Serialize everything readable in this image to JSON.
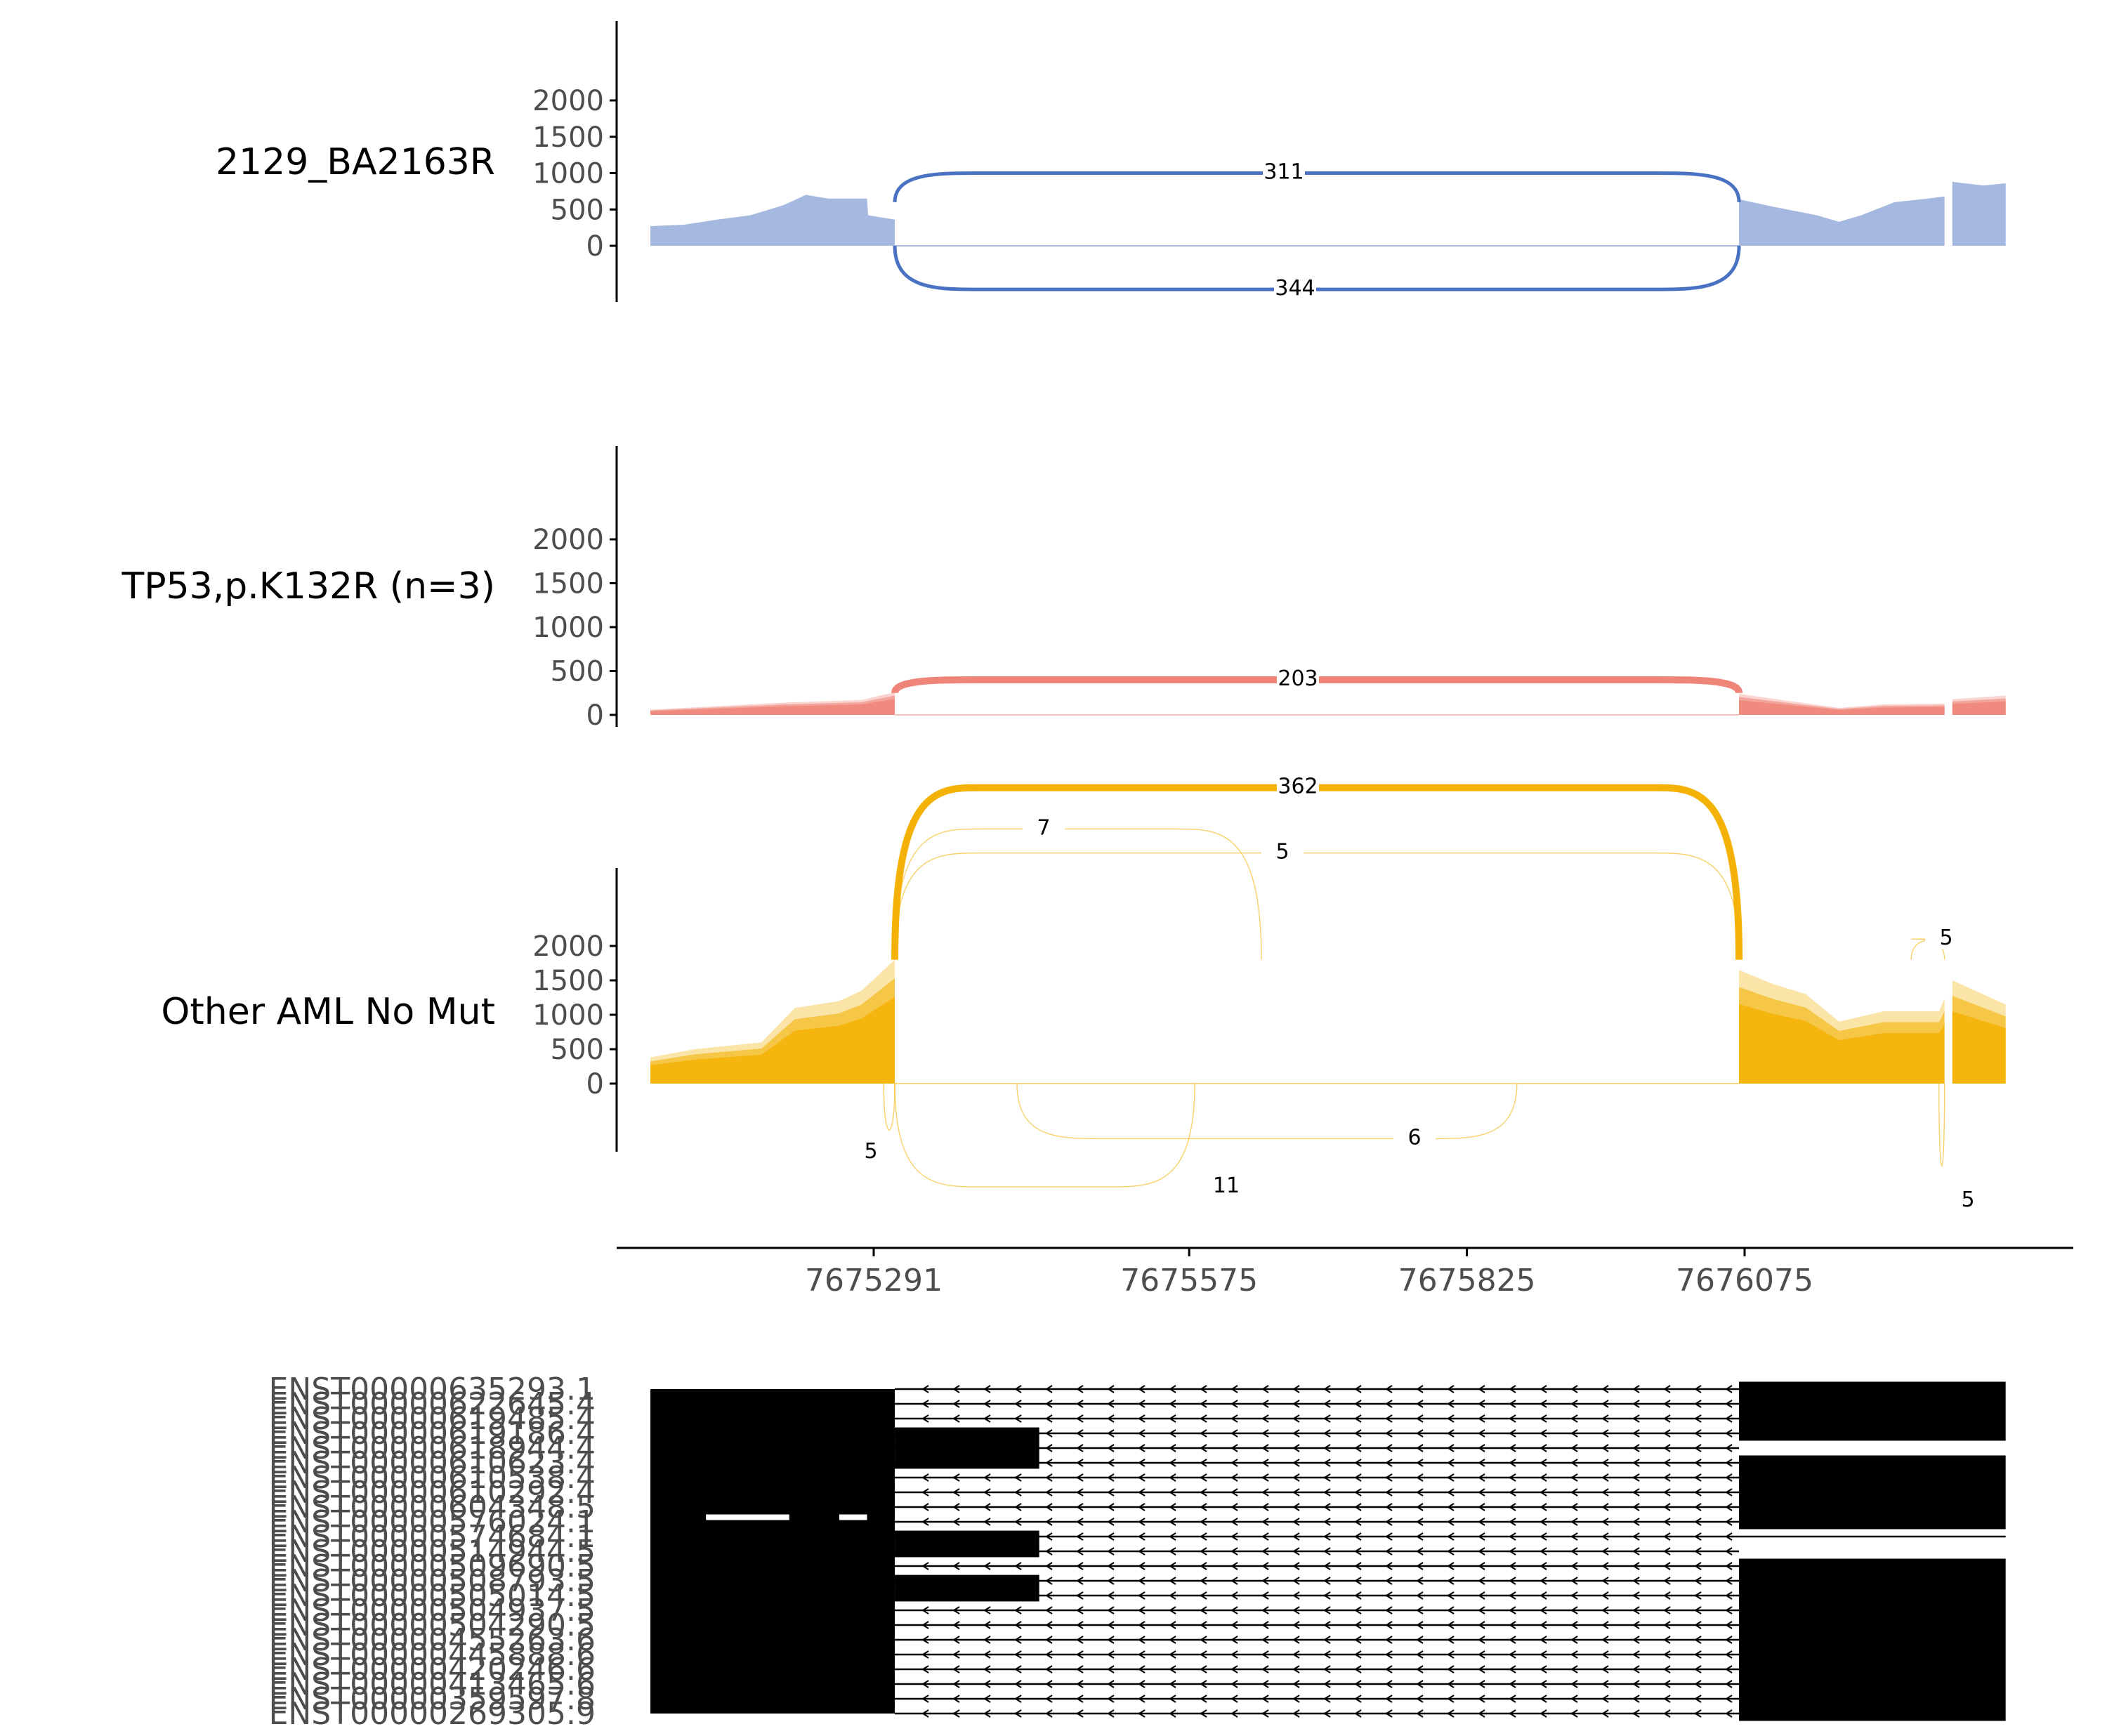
{
  "chart_data": {
    "type": "area",
    "title": "",
    "grid": false,
    "colors": {
      "sample": "#4a72c2",
      "tp53": "#ef8579",
      "other": "#f4b206",
      "gene": "#000000"
    },
    "panels": [
      {
        "id": "sample",
        "label": "2129_BA2163R",
        "y_ticks": [
          "2000",
          "1500",
          "1000",
          "500",
          "0"
        ],
        "ylim": [
          -600,
          3000
        ],
        "coverage": [
          [
            7675090,
            270
          ],
          [
            7675120,
            290
          ],
          [
            7675150,
            360
          ],
          [
            7675180,
            420
          ],
          [
            7675210,
            560
          ],
          [
            7675230,
            700
          ],
          [
            7675250,
            650
          ],
          [
            7675285,
            650
          ],
          [
            7675286,
            420
          ],
          [
            7675310,
            360
          ],
          [
            7676070,
            640
          ],
          [
            7676100,
            540
          ],
          [
            7676140,
            420
          ],
          [
            7676160,
            330
          ],
          [
            7676180,
            420
          ],
          [
            7676210,
            600
          ],
          [
            7676240,
            650
          ],
          [
            7676255,
            680
          ],
          [
            7676262,
            880
          ],
          [
            7676290,
            830
          ],
          [
            7676310,
            860
          ]
        ],
        "junctions": [
          {
            "value": 311,
            "side": "above",
            "peak": 1000
          },
          {
            "value": 344,
            "side": "below",
            "peak": -600
          }
        ]
      },
      {
        "id": "tp53",
        "label": "TP53,p.K132R (n=3)",
        "y_ticks": [
          "2000",
          "1500",
          "1000",
          "500",
          "0"
        ],
        "ylim": [
          -150,
          3000
        ],
        "coverage": [
          [
            7675090,
            60
          ],
          [
            7675150,
            100
          ],
          [
            7675210,
            140
          ],
          [
            7675280,
            170
          ],
          [
            7675310,
            260
          ],
          [
            7676070,
            240
          ],
          [
            7676120,
            150
          ],
          [
            7676160,
            80
          ],
          [
            7676200,
            120
          ],
          [
            7676255,
            130
          ],
          [
            7676262,
            180
          ],
          [
            7676310,
            220
          ]
        ],
        "junctions": [
          {
            "value": 203,
            "side": "above",
            "peak": 400
          }
        ]
      },
      {
        "id": "other",
        "label": "Other AML No Mut",
        "y_ticks": [
          "2000",
          "1500",
          "1000",
          "500",
          "0"
        ],
        "ylim": [
          -1900,
          4300
        ],
        "coverage": [
          [
            7675090,
            380
          ],
          [
            7675130,
            500
          ],
          [
            7675190,
            600
          ],
          [
            7675220,
            1100
          ],
          [
            7675260,
            1200
          ],
          [
            7675280,
            1350
          ],
          [
            7675310,
            1800
          ],
          [
            7676070,
            1650
          ],
          [
            7676100,
            1450
          ],
          [
            7676130,
            1300
          ],
          [
            7676160,
            900
          ],
          [
            7676200,
            1050
          ],
          [
            7676250,
            1050
          ],
          [
            7676262,
            1500
          ],
          [
            7676310,
            1150
          ]
        ],
        "junctions": [
          {
            "value": 362,
            "side": "above",
            "peak": 4300
          },
          {
            "value": 7,
            "side": "above",
            "peak": 3700
          },
          {
            "value": 5,
            "side": "above",
            "peak": 3350
          },
          {
            "value": 5,
            "side": "above",
            "peak": 2100
          },
          {
            "value": 5,
            "side": "below",
            "peak": -900
          },
          {
            "value": 11,
            "side": "below",
            "peak": -1500
          },
          {
            "value": 6,
            "side": "below",
            "peak": -800
          },
          {
            "value": 5,
            "side": "below",
            "peak": -1600
          }
        ]
      }
    ],
    "x_axis": {
      "tick_labels": [
        "7675291",
        "7675575",
        "7675825",
        "7676075"
      ]
    },
    "transcripts": [
      "ENST00000635293.1",
      "ENST00000622645.4",
      "ENST00000619485.4",
      "ENST00000619186.4",
      "ENST00000618944.4",
      "ENST00000610623.4",
      "ENST00000610538.4",
      "ENST00000610292.4",
      "ENST00000604348.5",
      "ENST00000576024.1",
      "ENST00000574684.1",
      "ENST00000514944.5",
      "ENST00000509690.5",
      "ENST00000508793.5",
      "ENST00000505014.5",
      "ENST00000504937.5",
      "ENST00000504290.5",
      "ENST00000455263.6",
      "ENST00000445888.6",
      "ENST00000420246.6",
      "ENST00000413465.6",
      "ENST00000359597.8",
      "ENST00000269305.9"
    ]
  }
}
